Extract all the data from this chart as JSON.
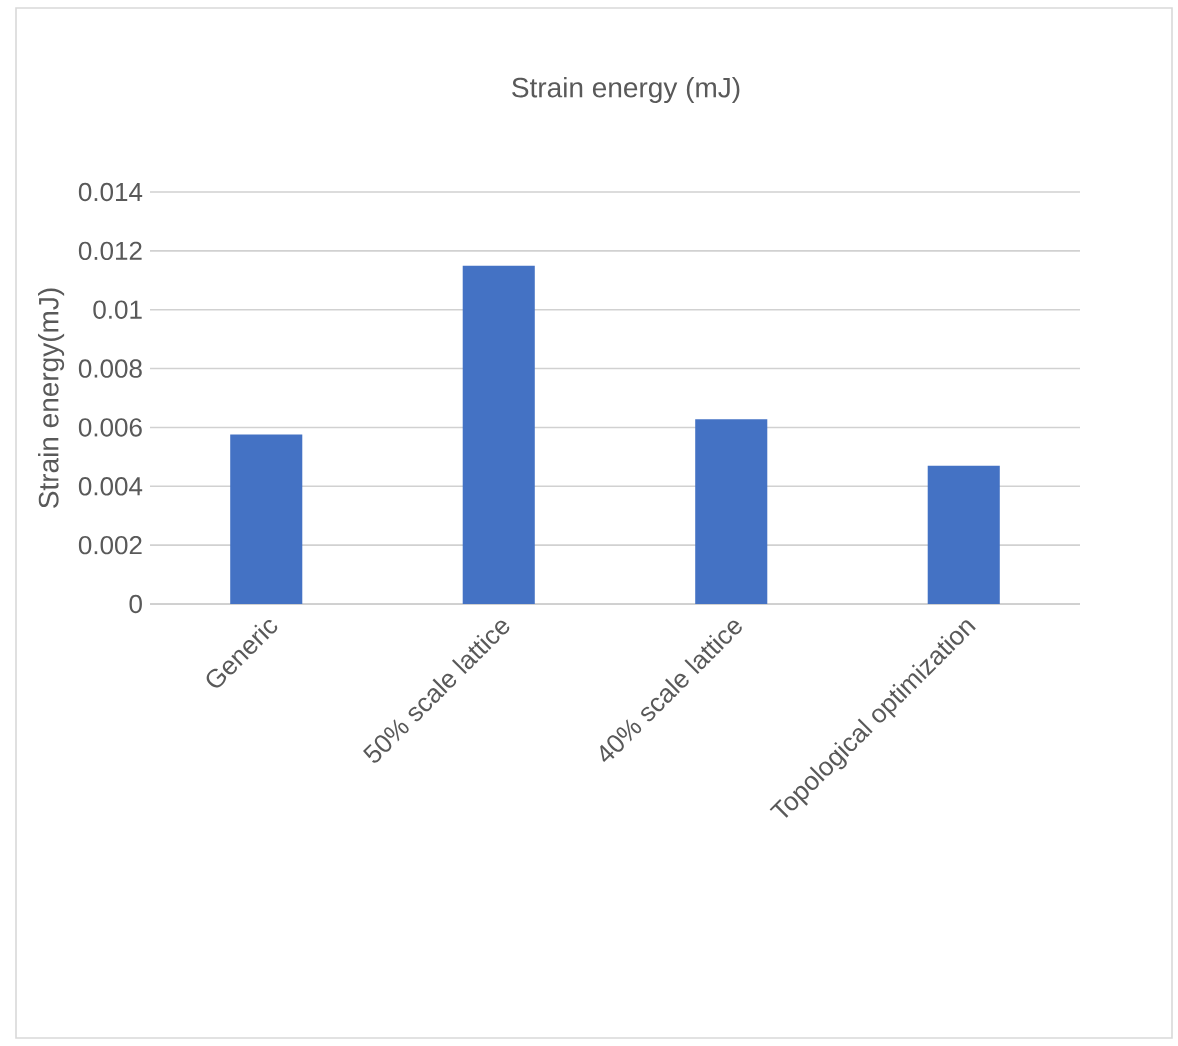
{
  "chart_data": {
    "type": "bar",
    "title": "Strain energy (mJ)",
    "ylabel": "Strain energy(mJ)",
    "categories": [
      "Generic",
      "50% scale lattice",
      "40% scale lattice",
      "Topological optimization"
    ],
    "values": [
      0.00576,
      0.01149,
      0.00628,
      0.0047
    ],
    "color": "#4472c4",
    "ylim": [
      0,
      0.014
    ],
    "yticks": [
      0,
      0.002,
      0.004,
      0.006,
      0.008,
      0.01,
      0.012,
      0.014
    ],
    "grid": "y"
  }
}
